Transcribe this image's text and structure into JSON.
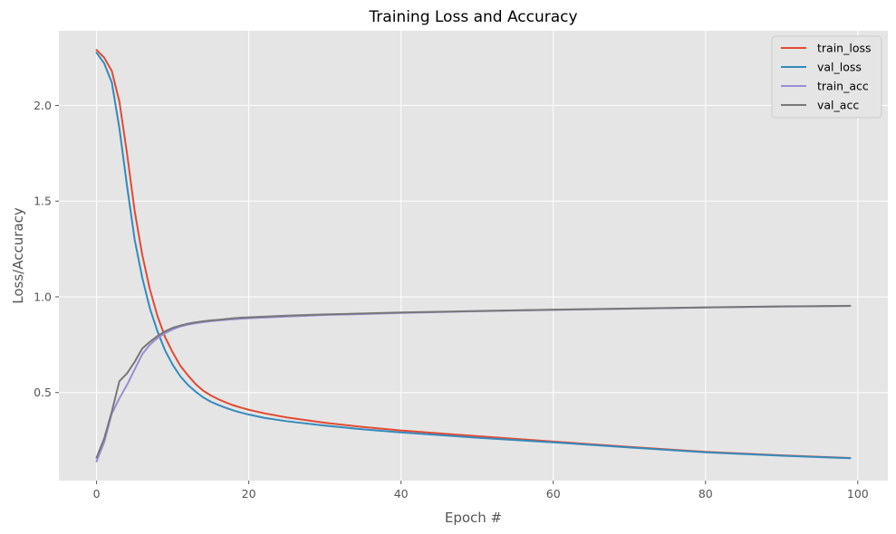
{
  "chart_data": {
    "type": "line",
    "title": "Training Loss and Accuracy",
    "xlabel": "Epoch #",
    "ylabel": "Loss/Accuracy",
    "xlim": [
      -4.95,
      103.95
    ],
    "ylim": [
      0.04,
      2.39
    ],
    "xticks": [
      0,
      20,
      40,
      60,
      80,
      100
    ],
    "xtick_labels": [
      "0",
      "20",
      "40",
      "60",
      "80",
      "100"
    ],
    "yticks": [
      0.5,
      1.0,
      1.5,
      2.0
    ],
    "ytick_labels": [
      "0.5",
      "1.0",
      "1.5",
      "2.0"
    ],
    "grid": true,
    "legend_position": "top-right",
    "series": [
      {
        "name": "train_loss",
        "color": "#e24a33",
        "points": [
          [
            0,
            2.29
          ],
          [
            1,
            2.25
          ],
          [
            2,
            2.18
          ],
          [
            3,
            2.02
          ],
          [
            4,
            1.75
          ],
          [
            5,
            1.45
          ],
          [
            6,
            1.22
          ],
          [
            7,
            1.04
          ],
          [
            8,
            0.9
          ],
          [
            9,
            0.79
          ],
          [
            10,
            0.71
          ],
          [
            11,
            0.64
          ],
          [
            12,
            0.59
          ],
          [
            13,
            0.545
          ],
          [
            14,
            0.51
          ],
          [
            15,
            0.485
          ],
          [
            16,
            0.465
          ],
          [
            17,
            0.448
          ],
          [
            18,
            0.433
          ],
          [
            19,
            0.421
          ],
          [
            20,
            0.41
          ],
          [
            22,
            0.392
          ],
          [
            25,
            0.37
          ],
          [
            30,
            0.342
          ],
          [
            35,
            0.32
          ],
          [
            40,
            0.302
          ],
          [
            50,
            0.272
          ],
          [
            60,
            0.244
          ],
          [
            70,
            0.216
          ],
          [
            80,
            0.19
          ],
          [
            90,
            0.172
          ],
          [
            99,
            0.158
          ]
        ]
      },
      {
        "name": "val_loss",
        "color": "#348abd",
        "points": [
          [
            0,
            2.275
          ],
          [
            1,
            2.22
          ],
          [
            2,
            2.12
          ],
          [
            3,
            1.88
          ],
          [
            4,
            1.58
          ],
          [
            5,
            1.3
          ],
          [
            6,
            1.1
          ],
          [
            7,
            0.94
          ],
          [
            8,
            0.82
          ],
          [
            9,
            0.72
          ],
          [
            10,
            0.645
          ],
          [
            11,
            0.585
          ],
          [
            12,
            0.54
          ],
          [
            13,
            0.505
          ],
          [
            14,
            0.475
          ],
          [
            15,
            0.452
          ],
          [
            16,
            0.435
          ],
          [
            17,
            0.42
          ],
          [
            18,
            0.406
          ],
          [
            19,
            0.395
          ],
          [
            20,
            0.385
          ],
          [
            22,
            0.368
          ],
          [
            25,
            0.35
          ],
          [
            30,
            0.327
          ],
          [
            35,
            0.308
          ],
          [
            40,
            0.292
          ],
          [
            50,
            0.264
          ],
          [
            60,
            0.24
          ],
          [
            70,
            0.213
          ],
          [
            80,
            0.188
          ],
          [
            90,
            0.17
          ],
          [
            99,
            0.157
          ]
        ]
      },
      {
        "name": "train_acc",
        "color": "#988ed5",
        "points": [
          [
            0,
            0.14
          ],
          [
            1,
            0.24
          ],
          [
            2,
            0.39
          ],
          [
            3,
            0.47
          ],
          [
            4,
            0.54
          ],
          [
            5,
            0.62
          ],
          [
            6,
            0.7
          ],
          [
            7,
            0.75
          ],
          [
            8,
            0.785
          ],
          [
            9,
            0.81
          ],
          [
            10,
            0.83
          ],
          [
            11,
            0.845
          ],
          [
            12,
            0.855
          ],
          [
            13,
            0.862
          ],
          [
            14,
            0.868
          ],
          [
            15,
            0.873
          ],
          [
            16,
            0.877
          ],
          [
            17,
            0.88
          ],
          [
            18,
            0.883
          ],
          [
            19,
            0.886
          ],
          [
            20,
            0.888
          ],
          [
            25,
            0.897
          ],
          [
            30,
            0.905
          ],
          [
            40,
            0.916
          ],
          [
            50,
            0.925
          ],
          [
            60,
            0.932
          ],
          [
            70,
            0.938
          ],
          [
            80,
            0.944
          ],
          [
            90,
            0.949
          ],
          [
            99,
            0.952
          ]
        ]
      },
      {
        "name": "val_acc",
        "color": "#777777",
        "points": [
          [
            0,
            0.16
          ],
          [
            1,
            0.26
          ],
          [
            2,
            0.4
          ],
          [
            3,
            0.56
          ],
          [
            4,
            0.6
          ],
          [
            5,
            0.66
          ],
          [
            6,
            0.73
          ],
          [
            7,
            0.765
          ],
          [
            8,
            0.795
          ],
          [
            9,
            0.82
          ],
          [
            10,
            0.838
          ],
          [
            11,
            0.85
          ],
          [
            12,
            0.86
          ],
          [
            13,
            0.867
          ],
          [
            14,
            0.872
          ],
          [
            15,
            0.877
          ],
          [
            16,
            0.88
          ],
          [
            17,
            0.884
          ],
          [
            18,
            0.888
          ],
          [
            19,
            0.891
          ],
          [
            20,
            0.893
          ],
          [
            25,
            0.902
          ],
          [
            30,
            0.908
          ],
          [
            40,
            0.918
          ],
          [
            50,
            0.926
          ],
          [
            60,
            0.933
          ],
          [
            70,
            0.939
          ],
          [
            80,
            0.945
          ],
          [
            90,
            0.95
          ],
          [
            99,
            0.953
          ]
        ]
      }
    ]
  }
}
